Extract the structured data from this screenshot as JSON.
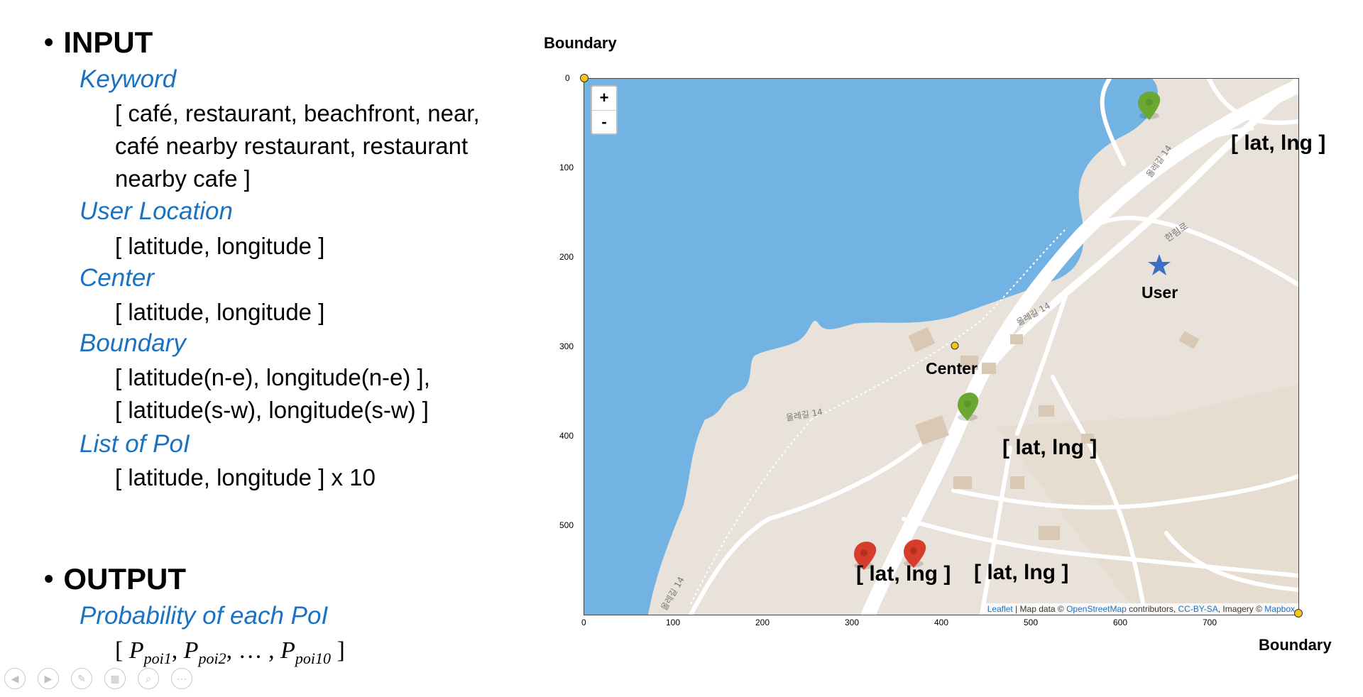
{
  "input": {
    "heading": "INPUT",
    "keyword": {
      "label": "Keyword",
      "lines": [
        "[ café, restaurant, beachfront, near,",
        "café nearby restaurant, restaurant",
        "nearby cafe ]"
      ]
    },
    "user_location": {
      "label": "User Location",
      "value": "[ latitude, longitude ]"
    },
    "center": {
      "label": "Center",
      "value": "[ latitude, longitude ]"
    },
    "boundary": {
      "label": "Boundary",
      "lines": [
        "[ latitude(n-e), longitude(n-e) ],",
        "[ latitude(s-w), longitude(s-w) ]"
      ]
    },
    "poi_list": {
      "label": "List of PoI",
      "value": "[ latitude, longitude ] x 10"
    }
  },
  "output": {
    "heading": "OUTPUT",
    "prob": {
      "label": "Probability of each PoI",
      "open": "[ ",
      "p_symbol": "P",
      "sub1": "poi1",
      "sub2": "poi2",
      "ellipsis": "… ,",
      "sub10": "poi10",
      "close": " ]"
    }
  },
  "map": {
    "boundary_top_label": "Boundary",
    "boundary_bottom_label": "Boundary",
    "center_label": "Center",
    "user_label": "User",
    "poi_label": "[ lat, lng ]",
    "zoom_in": "+",
    "zoom_out": "-",
    "x_ticks": [
      "0",
      "100",
      "200",
      "300",
      "400",
      "500",
      "600",
      "700"
    ],
    "y_ticks": [
      "0",
      "100",
      "200",
      "300",
      "400",
      "500"
    ],
    "street_labels": [
      "올레길 14",
      "올레길 14",
      "한림로",
      "올레길 14",
      "올레길 14"
    ],
    "attribution": {
      "leaflet": "Leaflet",
      "map_data": " | Map data © ",
      "osm": "OpenStreetMap",
      "contributors": " contributors, ",
      "license": "CC-BY-SA",
      "imagery": ", Imagery © ",
      "mapbox": "Mapbox"
    },
    "colors": {
      "water": "#72b3e3",
      "land": "#e9e2da",
      "road": "#ffffff",
      "poi_green": "#6aa832",
      "poi_red": "#d63d2c",
      "point_yellow": "#f5c518",
      "user_star": "#3a6fc4"
    }
  },
  "toolbar_icons": [
    "back-icon",
    "forward-icon",
    "pen-icon",
    "slides-icon",
    "zoom-icon",
    "more-icon"
  ]
}
